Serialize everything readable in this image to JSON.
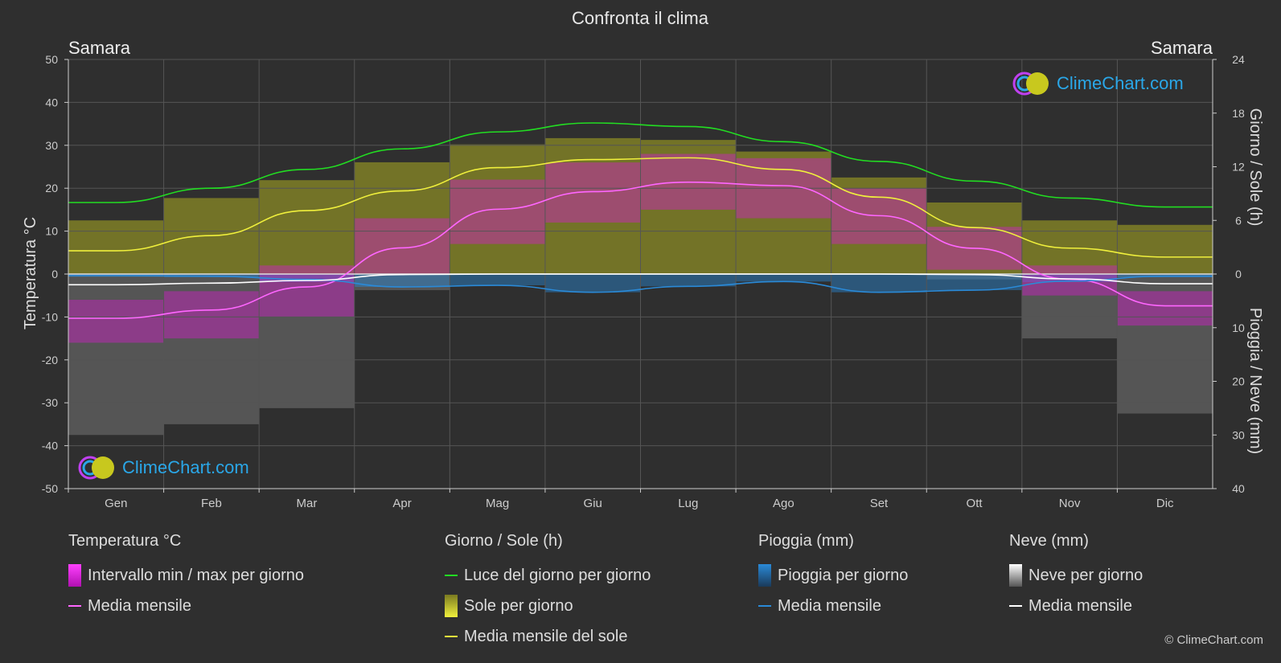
{
  "title": "Confronta il clima",
  "location_left": "Samara",
  "location_right": "Samara",
  "copyright": "© ClimeChart.com",
  "logo_text": "ClimeChart.com",
  "colors": {
    "background": "#2f2f2f",
    "grid": "#555555",
    "temp_mean": "#ff66ff",
    "temp_range": "#d020c8",
    "daylight": "#22dd22",
    "sun": "#c8c81e",
    "sun_mean": "#f0f03c",
    "rain": "#2a8ad8",
    "rain_mean": "#2a8ad8",
    "snow": "#bbbbbb",
    "snow_mean": "#ffffff"
  },
  "chart_data": {
    "type": "area",
    "categories": [
      "Gen",
      "Feb",
      "Mar",
      "Apr",
      "Mag",
      "Giu",
      "Lug",
      "Ago",
      "Set",
      "Ott",
      "Nov",
      "Dic"
    ],
    "axes": {
      "left": {
        "label": "Temperatura °C",
        "ticks": [
          "50",
          "40",
          "30",
          "20",
          "10",
          "0",
          "-10",
          "-20",
          "-30",
          "-40",
          "-50"
        ],
        "ylim": [
          -50,
          50
        ]
      },
      "right_top": {
        "label": "Giorno / Sole (h)",
        "ticks": [
          "24",
          "18",
          "12",
          "6",
          "0"
        ],
        "ylim": [
          0,
          24
        ]
      },
      "right_bottom": {
        "label": "Pioggia / Neve (mm)",
        "ticks": [
          "0",
          "10",
          "20",
          "30",
          "40"
        ],
        "ylim": [
          0,
          40
        ]
      }
    },
    "series": [
      {
        "name": "Media mensile",
        "group": "Temperatura °C",
        "unit": "°C",
        "values": [
          -10.3,
          -8.4,
          -3.0,
          6.1,
          15.1,
          19.2,
          21.4,
          20.6,
          13.6,
          6.0,
          -1.2,
          -7.4
        ]
      },
      {
        "name": "Intervallo min / max per giorno",
        "group": "Temperatura °C",
        "unit": "°C",
        "min": [
          -16,
          -15,
          -10,
          0,
          7,
          12,
          15,
          13,
          7,
          1,
          -5,
          -12
        ],
        "max": [
          -6,
          -4,
          2,
          13,
          22,
          26,
          28,
          27,
          20,
          11,
          2,
          -4
        ]
      },
      {
        "name": "Luce del giorno per giorno",
        "group": "Giorno / Sole (h)",
        "unit": "h",
        "values": [
          8.0,
          9.6,
          11.7,
          14.0,
          15.9,
          16.9,
          16.5,
          14.8,
          12.6,
          10.4,
          8.5,
          7.5
        ]
      },
      {
        "name": "Sole per giorno",
        "group": "Giorno / Sole (h)",
        "unit": "h",
        "values": [
          6.0,
          8.5,
          10.5,
          12.5,
          14.5,
          15.2,
          15.0,
          13.7,
          10.8,
          8.0,
          6.0,
          5.5
        ]
      },
      {
        "name": "Media mensile del sole",
        "group": "Giorno / Sole (h)",
        "unit": "h",
        "values": [
          2.6,
          4.3,
          7.1,
          9.3,
          11.9,
          12.8,
          13.0,
          11.7,
          8.6,
          5.2,
          2.9,
          1.9
        ]
      },
      {
        "name": "Pioggia per giorno",
        "group": "Pioggia (mm)",
        "unit": "mm",
        "values": [
          0.5,
          0.6,
          1.5,
          2.4,
          2.1,
          3.4,
          2.3,
          1.4,
          3.4,
          3.0,
          1.5,
          0.6
        ]
      },
      {
        "name": "Media mensile",
        "group": "Pioggia (mm)",
        "unit": "mm",
        "values": [
          0.3,
          0.4,
          1.0,
          2.4,
          2.1,
          3.4,
          2.3,
          1.4,
          3.4,
          3.0,
          1.3,
          0.4
        ]
      },
      {
        "name": "Neve per giorno",
        "group": "Neve (mm)",
        "unit": "mm",
        "values": [
          30,
          28,
          25,
          3,
          0,
          0,
          0,
          0,
          0,
          1,
          12,
          26
        ]
      },
      {
        "name": "Media mensile",
        "group": "Neve (mm)",
        "unit": "mm",
        "values": [
          2.0,
          1.7,
          1.2,
          0.1,
          0,
          0,
          0,
          0,
          0,
          0.1,
          0.9,
          1.8
        ]
      }
    ]
  },
  "legend": {
    "temp": {
      "title": "Temperatura °C",
      "items": [
        "Intervallo min / max per giorno",
        "Media mensile"
      ]
    },
    "sun": {
      "title": "Giorno / Sole (h)",
      "items": [
        "Luce del giorno per giorno",
        "Sole per giorno",
        "Media mensile del sole"
      ]
    },
    "rain": {
      "title": "Pioggia (mm)",
      "items": [
        "Pioggia per giorno",
        "Media mensile"
      ]
    },
    "snow": {
      "title": "Neve (mm)",
      "items": [
        "Neve per giorno",
        "Media mensile"
      ]
    }
  }
}
